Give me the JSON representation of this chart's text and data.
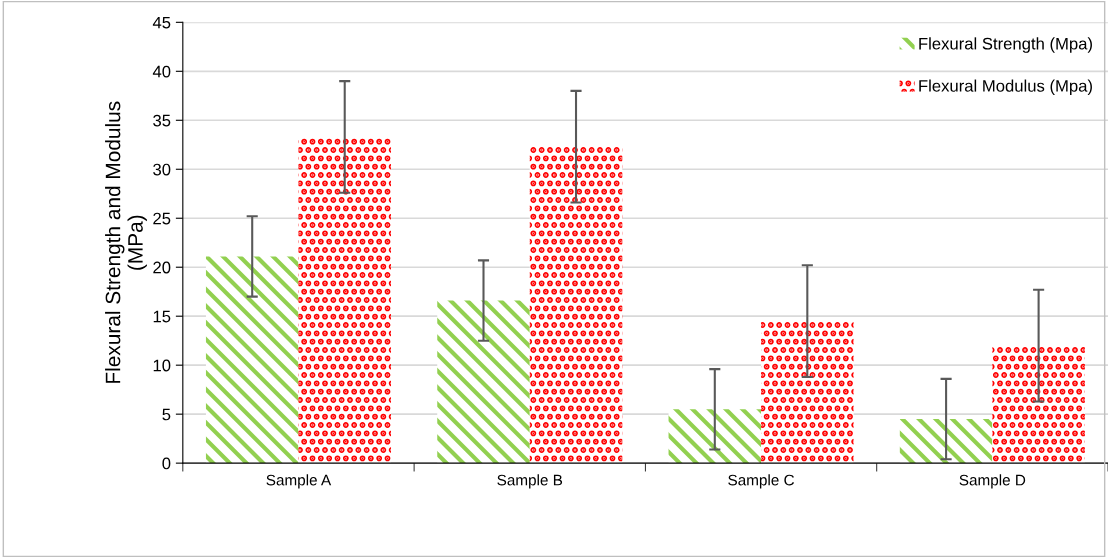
{
  "chart_data": {
    "type": "bar",
    "ylabel": "Flexural Strength and Modulus\n(MPa)",
    "categories": [
      "Sample A",
      "Sample B",
      "Sample C",
      "Sample D"
    ],
    "series": [
      {
        "name": "Flexural Strength (Mpa)",
        "color": "#92d050",
        "values": [
          21.1,
          16.6,
          5.5,
          4.5
        ],
        "errors": [
          4.1,
          4.1,
          4.1,
          4.1
        ]
      },
      {
        "name": "Flexural Modulus (Mpa)",
        "color": "#ff0000",
        "values": [
          33.3,
          32.3,
          14.5,
          12.0
        ],
        "errors": [
          5.7,
          5.7,
          5.7,
          5.7
        ]
      }
    ],
    "ylim": [
      0,
      45
    ],
    "yticks": [
      0,
      5,
      10,
      15,
      20,
      25,
      30,
      35,
      40,
      45
    ],
    "grid": "y",
    "legend": "top right"
  }
}
